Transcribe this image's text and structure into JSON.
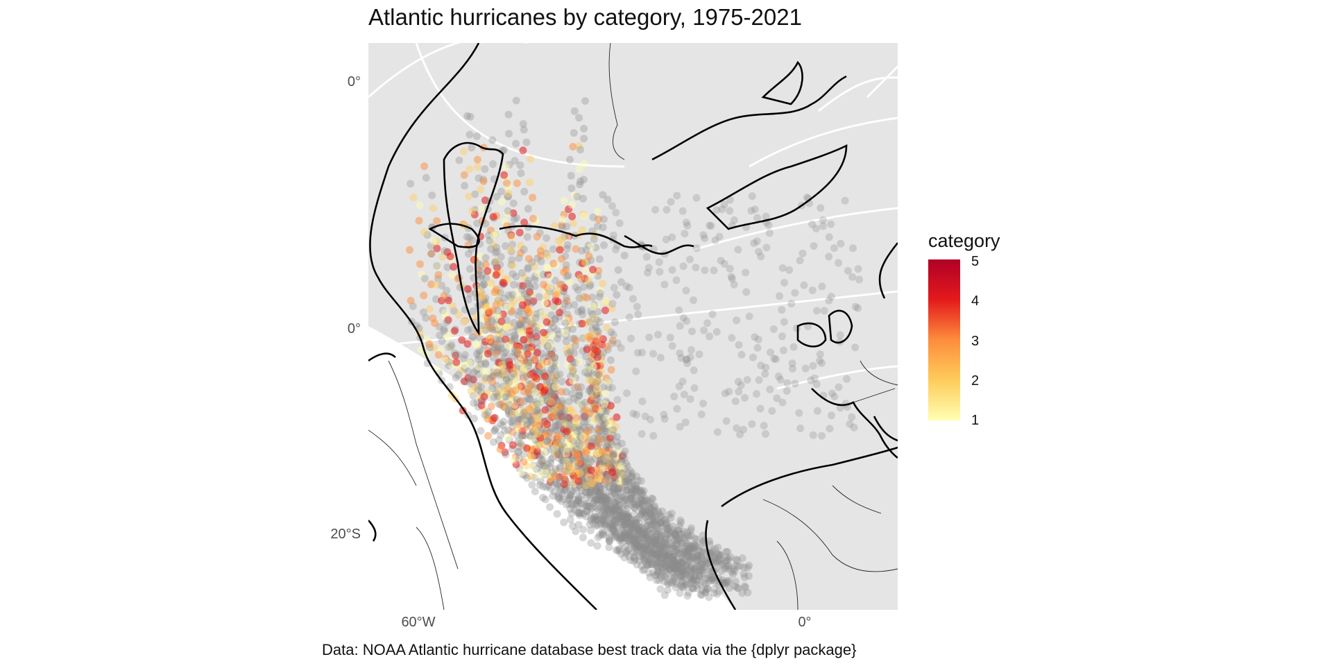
{
  "title": "Atlantic hurricanes by category, 1975-2021",
  "caption": "Data: NOAA Atlantic hurricane database best track data via the {dplyr package}",
  "y_ticks": [
    "0°",
    "0°",
    "20°S"
  ],
  "x_ticks": [
    "60°W",
    "0°"
  ],
  "legend": {
    "title": "category",
    "labels": [
      "5",
      "4",
      "3",
      "2",
      "1"
    ],
    "colors": {
      "1": "#FFFFB2",
      "2": "#FECC5C",
      "3": "#FD8D3C",
      "4": "#E31A1C",
      "5": "#B10026"
    }
  },
  "colors": {
    "panel": "#E5E5E5",
    "grid": "#FFFFFF",
    "points": "#8C8C8C",
    "coast": "#000000"
  }
}
